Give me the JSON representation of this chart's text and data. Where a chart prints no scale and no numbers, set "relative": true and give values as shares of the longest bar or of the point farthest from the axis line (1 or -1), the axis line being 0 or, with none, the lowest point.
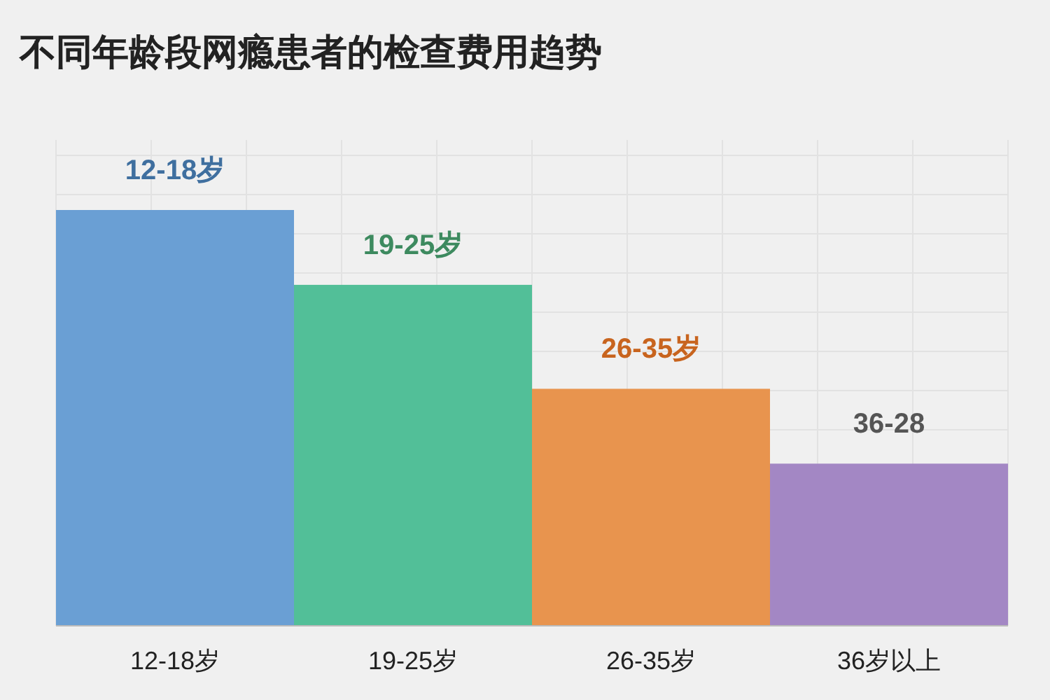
{
  "chart_data": {
    "type": "bar",
    "title": "不同年龄段网瘾患者的检查费用趋势",
    "categories": [
      "12-18岁",
      "19-25岁",
      "26-35岁",
      "36岁以上"
    ],
    "relative": true,
    "values": [
      1,
      0.82,
      0.57,
      0.39
    ],
    "colors": [
      "#6a9fd4",
      "#52bf98",
      "#e8944e",
      "#a387c4"
    ],
    "annotations": [
      "12-18岁",
      "19-25岁",
      "26-35岁",
      "36-28"
    ],
    "grid": true
  }
}
